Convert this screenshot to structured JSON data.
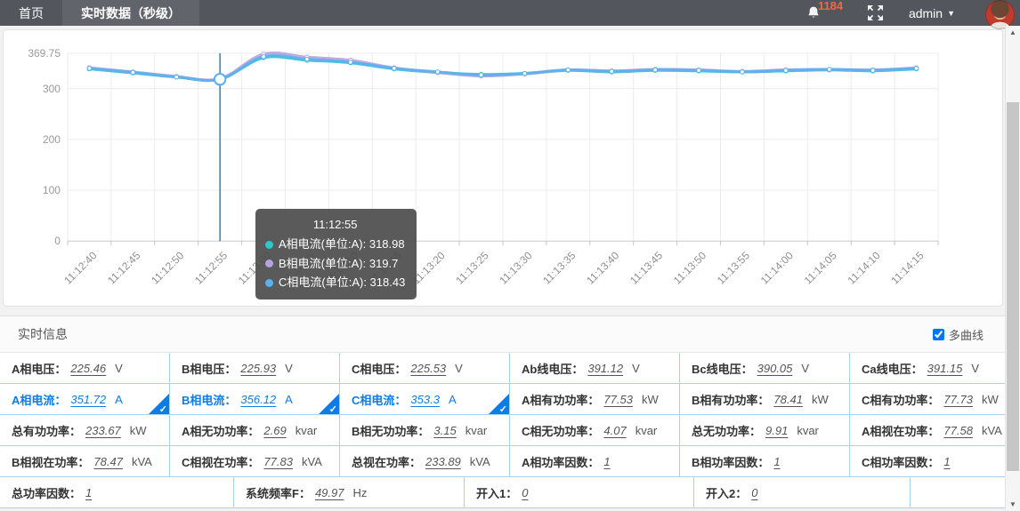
{
  "nav": {
    "tabs": [
      {
        "label": "首页",
        "active": false
      },
      {
        "label": "实时数据（秒级）",
        "active": true
      }
    ],
    "badge_count": "1184",
    "user_label": "admin"
  },
  "chart_data": {
    "type": "line",
    "title": "",
    "xlabel": "",
    "ylabel": "",
    "ylim": [
      0,
      369.75
    ],
    "yticks": [
      0,
      100,
      200,
      300,
      369.75
    ],
    "grid": true,
    "x": [
      "11:12:40",
      "11:12:45",
      "11:12:50",
      "11:12:55",
      "11:13:00",
      "11:13:05",
      "11:13:10",
      "11:13:15",
      "11:13:20",
      "11:13:25",
      "11:13:30",
      "11:13:35",
      "11:13:40",
      "11:13:45",
      "11:13:50",
      "11:13:55",
      "11:14:00",
      "11:14:05",
      "11:14:10",
      "11:14:15"
    ],
    "series": [
      {
        "name": "A相电流(单位:A)",
        "color": "#2ec7c9",
        "values": [
          339,
          331,
          323,
          318.98,
          361,
          356,
          351,
          339,
          332,
          328,
          330,
          336,
          333,
          336,
          335,
          333,
          335,
          337,
          335,
          339
        ]
      },
      {
        "name": "B相电流(单位:A)",
        "color": "#b6a2de",
        "values": [
          341,
          333,
          324,
          319.7,
          368,
          362,
          356,
          341,
          332,
          325,
          329,
          337,
          335,
          338,
          337,
          334,
          337,
          338,
          337,
          341
        ]
      },
      {
        "name": "C相电流(单位:A)",
        "color": "#5ab1ef",
        "values": [
          340,
          332,
          323,
          318.43,
          363,
          358,
          352,
          340,
          333,
          327,
          330,
          337,
          334,
          337,
          336,
          333,
          336,
          338,
          336,
          340
        ]
      }
    ],
    "hover_index": 3,
    "tooltip": {
      "title": "11:12:55",
      "items": [
        {
          "name": "A相电流(单位:A)",
          "color": "#2ec7c9",
          "value": "318.98"
        },
        {
          "name": "B相电流(单位:A)",
          "color": "#b6a2de",
          "value": "319.7"
        },
        {
          "name": "C相电流(单位:A)",
          "color": "#5ab1ef",
          "value": "318.43"
        }
      ]
    }
  },
  "info": {
    "section_title": "实时信息",
    "multi_curve_label": "多曲线",
    "multi_curve_checked": true,
    "rows": [
      [
        {
          "label": "A相电压",
          "value": "225.46",
          "unit": "V",
          "selected": false
        },
        {
          "label": "B相电压",
          "value": "225.93",
          "unit": "V",
          "selected": false
        },
        {
          "label": "C相电压",
          "value": "225.53",
          "unit": "V",
          "selected": false
        },
        {
          "label": "Ab线电压",
          "value": "391.12",
          "unit": "V",
          "selected": false
        },
        {
          "label": "Bc线电压",
          "value": "390.05",
          "unit": "V",
          "selected": false
        },
        {
          "label": "Ca线电压",
          "value": "391.15",
          "unit": "V",
          "selected": false
        }
      ],
      [
        {
          "label": "A相电流",
          "value": "351.72",
          "unit": "A",
          "selected": true
        },
        {
          "label": "B相电流",
          "value": "356.12",
          "unit": "A",
          "selected": true
        },
        {
          "label": "C相电流",
          "value": "353.3",
          "unit": "A",
          "selected": true
        },
        {
          "label": "A相有功功率",
          "value": "77.53",
          "unit": "kW",
          "selected": false
        },
        {
          "label": "B相有功功率",
          "value": "78.41",
          "unit": "kW",
          "selected": false
        },
        {
          "label": "C相有功功率",
          "value": "77.73",
          "unit": "kW",
          "selected": false
        }
      ],
      [
        {
          "label": "总有功功率",
          "value": "233.67",
          "unit": "kW",
          "selected": false
        },
        {
          "label": "A相无功功率",
          "value": "2.69",
          "unit": "kvar",
          "selected": false
        },
        {
          "label": "B相无功功率",
          "value": "3.15",
          "unit": "kvar",
          "selected": false
        },
        {
          "label": "C相无功功率",
          "value": "4.07",
          "unit": "kvar",
          "selected": false
        },
        {
          "label": "总无功功率",
          "value": "9.91",
          "unit": "kvar",
          "selected": false
        },
        {
          "label": "A相视在功率",
          "value": "77.58",
          "unit": "kVA",
          "selected": false
        }
      ],
      [
        {
          "label": "B相视在功率",
          "value": "78.47",
          "unit": "kVA",
          "selected": false
        },
        {
          "label": "C相视在功率",
          "value": "77.83",
          "unit": "kVA",
          "selected": false
        },
        {
          "label": "总视在功率",
          "value": "233.89",
          "unit": "kVA",
          "selected": false
        },
        {
          "label": "A相功率因数",
          "value": "1",
          "unit": "",
          "selected": false
        },
        {
          "label": "B相功率因数",
          "value": "1",
          "unit": "",
          "selected": false
        },
        {
          "label": "C相功率因数",
          "value": "1",
          "unit": "",
          "selected": false
        }
      ],
      [
        {
          "label": "总功率因数",
          "value": "1",
          "unit": "",
          "selected": false
        },
        {
          "label": "系统频率F",
          "value": "49.97",
          "unit": "Hz",
          "selected": false
        },
        {
          "label": "开入1",
          "value": "0",
          "unit": "",
          "selected": false
        },
        {
          "label": "开入2",
          "value": "0",
          "unit": "",
          "selected": false
        },
        {
          "label": "",
          "value": "",
          "unit": "",
          "selected": false
        }
      ]
    ],
    "colon": "："
  }
}
